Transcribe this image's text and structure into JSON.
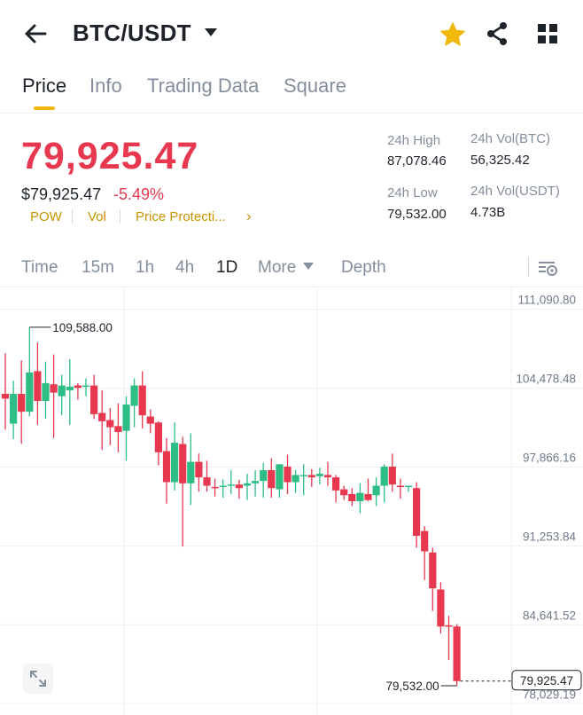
{
  "header": {
    "pair": "BTC/USDT",
    "icons": {
      "back": "arrow-left-icon",
      "caret": "caret-down-icon",
      "favorite": "star-icon",
      "share": "share-icon",
      "menu": "grid-icon"
    },
    "favorite_color": "#f0b90b"
  },
  "tabs": [
    {
      "label": "Price",
      "active": true
    },
    {
      "label": "Info",
      "active": false
    },
    {
      "label": "Trading Data",
      "active": false
    },
    {
      "label": "Square",
      "active": false
    }
  ],
  "ticker": {
    "last_price": "79,925.47",
    "usd_price": "$79,925.47",
    "change_pct": "-5.49%",
    "tags": [
      "POW",
      "Vol",
      "Price Protecti..."
    ],
    "tags_chevron": "›",
    "high_label": "24h High",
    "high_value": "87,078.46",
    "low_label": "24h Low",
    "low_value": "79,532.00",
    "vol_btc_label": "24h Vol(BTC)",
    "vol_btc_value": "56,325.42",
    "vol_usdt_label": "24h Vol(USDT)",
    "vol_usdt_value": "4.73B",
    "down_color": "#e8384f",
    "up_color": "#2ebd85"
  },
  "intervals": [
    {
      "label": "Time",
      "active": false
    },
    {
      "label": "15m",
      "active": false
    },
    {
      "label": "1h",
      "active": false
    },
    {
      "label": "4h",
      "active": false
    },
    {
      "label": "1D",
      "active": true
    },
    {
      "label": "More",
      "active": false
    },
    {
      "label": "Depth",
      "active": false
    }
  ],
  "chart_data": {
    "type": "candlestick",
    "y_ticks": [
      "111,090.80",
      "104,478.48",
      "97,866.16",
      "91,253.84",
      "84,641.52",
      "78,029.19"
    ],
    "y_tick_values": [
      111090.8,
      104478.48,
      97866.16,
      91253.84,
      84641.52,
      78029.19
    ],
    "ylim": [
      77900,
      112400
    ],
    "high_marker": "109,588.00",
    "high_value": 109588.0,
    "low_marker": "79,532.00",
    "low_value": 79532.0,
    "last_price_label": "79,925.47",
    "last_price_value": 79925.47,
    "grid": true,
    "candles": [
      [
        104000,
        103600,
        107400,
        101000
      ],
      [
        101500,
        104000,
        105100,
        100200
      ],
      [
        104000,
        102500,
        106800,
        99800
      ],
      [
        102500,
        105800,
        109588,
        102100
      ],
      [
        105900,
        103400,
        108300,
        101400
      ],
      [
        103400,
        104900,
        106700,
        101900
      ],
      [
        104800,
        104100,
        107300,
        100300
      ],
      [
        103800,
        104700,
        105600,
        102200
      ],
      [
        104300,
        104600,
        106900,
        101400
      ],
      [
        104700,
        104500,
        104900,
        103500
      ],
      [
        104600,
        104700,
        105300,
        103800
      ],
      [
        104700,
        102300,
        105600,
        101900
      ],
      [
        102400,
        101700,
        104300,
        99300
      ],
      [
        101800,
        101200,
        102800,
        99700
      ],
      [
        101300,
        100800,
        103200,
        99100
      ],
      [
        100900,
        103100,
        103800,
        98400
      ],
      [
        103000,
        104700,
        105300,
        101200
      ],
      [
        104700,
        102200,
        105900,
        101100
      ],
      [
        102100,
        101500,
        102700,
        100700
      ],
      [
        101600,
        99100,
        101700,
        98000
      ],
      [
        99200,
        96600,
        100300,
        94800
      ],
      [
        96600,
        99900,
        101600,
        95900
      ],
      [
        99800,
        96500,
        100400,
        91200
      ],
      [
        96500,
        98300,
        100700,
        94700
      ],
      [
        98300,
        97000,
        99000,
        95800
      ],
      [
        97000,
        96300,
        98400,
        95800
      ],
      [
        96200,
        96100,
        96900,
        95400
      ],
      [
        96200,
        96300,
        96800,
        95300
      ],
      [
        96300,
        96400,
        97600,
        95600
      ],
      [
        96400,
        96100,
        96800,
        95200
      ],
      [
        96300,
        96500,
        97300,
        95100
      ],
      [
        96500,
        96700,
        97600,
        95400
      ],
      [
        96700,
        97600,
        98200,
        95300
      ],
      [
        97600,
        96100,
        98600,
        95300
      ],
      [
        96000,
        98100,
        98100,
        95300
      ],
      [
        97900,
        96600,
        98900,
        95600
      ],
      [
        96600,
        97200,
        97600,
        95700
      ],
      [
        97200,
        97200,
        98100,
        95500
      ],
      [
        97200,
        97000,
        97700,
        96200
      ],
      [
        97100,
        97300,
        97800,
        96400
      ],
      [
        97200,
        97000,
        98300,
        96300
      ],
      [
        97000,
        95900,
        97200,
        94900
      ],
      [
        96000,
        95500,
        96300,
        95100
      ],
      [
        95600,
        95000,
        96100,
        94600
      ],
      [
        95000,
        95700,
        96500,
        94000
      ],
      [
        95600,
        95100,
        96900,
        95000
      ],
      [
        95500,
        96300,
        97000,
        94600
      ],
      [
        96300,
        97900,
        98100,
        94900
      ],
      [
        97900,
        96400,
        99000,
        95800
      ],
      [
        96300,
        96200,
        96900,
        95200
      ],
      [
        96200,
        96300,
        96300,
        95800
      ],
      [
        96100,
        92100,
        96600,
        91100
      ],
      [
        92500,
        90800,
        92900,
        88400
      ],
      [
        90700,
        87700,
        91100,
        85800
      ],
      [
        87600,
        84500,
        88200,
        83900
      ],
      [
        84600,
        84500,
        85400,
        81700
      ],
      [
        84500,
        79925.47,
        84700,
        79532
      ]
    ]
  }
}
